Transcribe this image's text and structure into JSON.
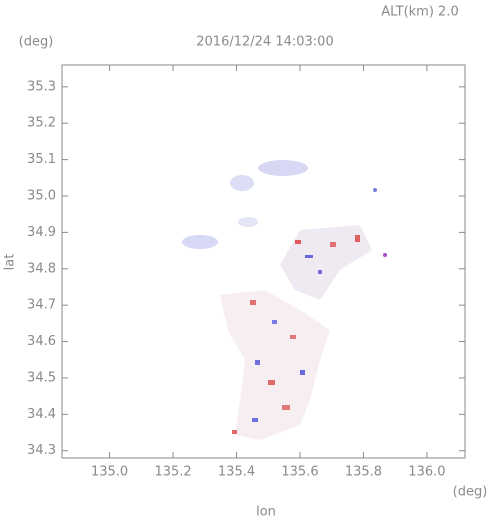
{
  "chart_data": {
    "type": "map",
    "title": "2016/12/24 14:03:00",
    "annotation": "ALT(km) 2.0",
    "x_label": "lon",
    "y_label": "lat",
    "x_unit": "(deg)",
    "y_unit": "(deg)",
    "xlim": [
      134.85,
      136.12
    ],
    "ylim": [
      34.28,
      35.36
    ],
    "xticks": [
      {
        "value": 135.0,
        "label": "135.0"
      },
      135.2,
      135.4,
      135.6,
      135.8,
      {
        "value": 136.0,
        "label": "136.0"
      }
    ],
    "yticks": [
      34.3,
      34.4,
      34.5,
      34.6,
      34.7,
      34.8,
      34.9,
      {
        "value": 35.0,
        "label": "35.0"
      },
      35.1,
      35.2,
      35.3
    ]
  }
}
